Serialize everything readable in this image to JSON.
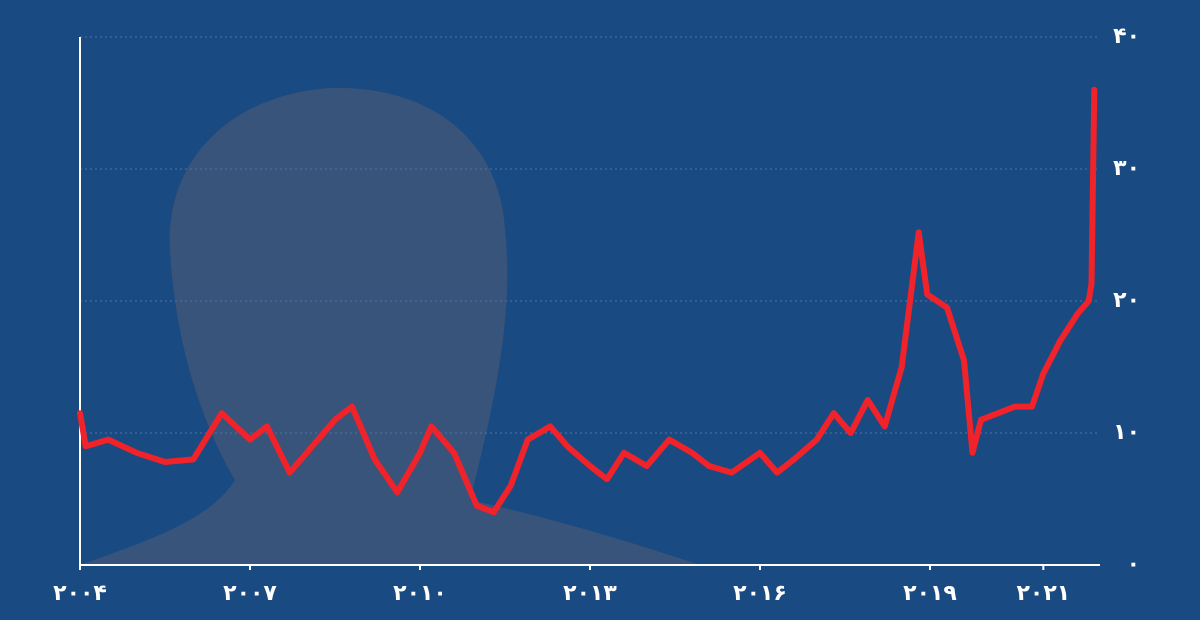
{
  "chart_data": {
    "type": "line",
    "x": [
      2004.0,
      2004.1,
      2004.5,
      2005.0,
      2005.5,
      2006.0,
      2006.5,
      2007.0,
      2007.3,
      2007.7,
      2008.0,
      2008.5,
      2008.8,
      2009.2,
      2009.6,
      2010.0,
      2010.2,
      2010.6,
      2011.0,
      2011.3,
      2011.6,
      2011.9,
      2012.3,
      2012.6,
      2013.0,
      2013.3,
      2013.6,
      2014.0,
      2014.4,
      2014.8,
      2015.1,
      2015.5,
      2016.0,
      2016.3,
      2016.6,
      2017.0,
      2017.3,
      2017.6,
      2017.9,
      2018.2,
      2018.5,
      2018.8,
      2018.95,
      2019.3,
      2019.6,
      2019.75,
      2019.9,
      2020.2,
      2020.5,
      2020.8,
      2021.0,
      2021.3,
      2021.6,
      2021.8,
      2021.85,
      2021.9
    ],
    "series": [
      {
        "color": "#f0222a",
        "values": [
          11.5,
          9,
          9.5,
          8.5,
          7.8,
          8,
          11.5,
          9.5,
          10.5,
          7,
          8.5,
          11,
          12,
          8,
          5.5,
          8.5,
          10.5,
          8.5,
          4.5,
          4,
          6,
          9.5,
          10.5,
          9,
          7.5,
          6.5,
          8.5,
          7.5,
          9.5,
          8.5,
          7.5,
          7,
          8.5,
          7,
          8,
          9.5,
          11.5,
          10,
          12.5,
          10.5,
          15,
          25.2,
          20.5,
          19.5,
          15.5,
          8.5,
          11,
          11.5,
          12,
          12,
          14.5,
          17,
          19,
          20,
          21.3,
          36
        ]
      }
    ],
    "xlim": [
      2004,
      2022
    ],
    "xticks": [
      {
        "value": 2004,
        "label": "۲۰۰۴"
      },
      {
        "value": 2007,
        "label": "۲۰۰۷"
      },
      {
        "value": 2010,
        "label": "۲۰۱۰"
      },
      {
        "value": 2013,
        "label": "۲۰۱۳"
      },
      {
        "value": 2016,
        "label": "۲۰۱۶"
      },
      {
        "value": 2019,
        "label": "۲۰۱۹"
      },
      {
        "value": 2021,
        "label": "۲۰۲۱"
      }
    ],
    "ylim": [
      0,
      40
    ],
    "yticks": [
      {
        "value": 0,
        "label": "۰"
      },
      {
        "value": 10,
        "label": "۱۰"
      },
      {
        "value": 20,
        "label": "۲۰"
      },
      {
        "value": 30,
        "label": "۳۰"
      },
      {
        "value": 40,
        "label": "۴۰"
      }
    ],
    "grid": true
  }
}
